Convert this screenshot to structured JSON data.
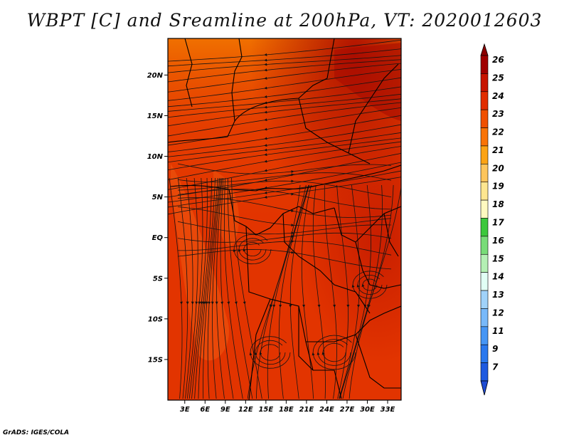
{
  "title": "WBPT [C] and Sreamline at 200hPa, VT: 2020012603",
  "credit": "GrADS: IGES/COLA",
  "map": {
    "lat_labels": [
      {
        "label": "20N",
        "lat": 20
      },
      {
        "label": "15N",
        "lat": 15
      },
      {
        "label": "10N",
        "lat": 10
      },
      {
        "label": "5N",
        "lat": 5
      },
      {
        "label": "EQ",
        "lat": 0
      },
      {
        "label": "5S",
        "lat": -5
      },
      {
        "label": "10S",
        "lat": -10
      },
      {
        "label": "15S",
        "lat": -15
      }
    ],
    "lon_labels": [
      {
        "label": "3E",
        "lon": 3
      },
      {
        "label": "6E",
        "lon": 6
      },
      {
        "label": "9E",
        "lon": 9
      },
      {
        "label": "12E",
        "lon": 12
      },
      {
        "label": "15E",
        "lon": 15
      },
      {
        "label": "18E",
        "lon": 18
      },
      {
        "label": "21E",
        "lon": 21
      },
      {
        "label": "24E",
        "lon": 24
      },
      {
        "label": "27E",
        "lon": 27
      },
      {
        "label": "30E",
        "lon": 30
      },
      {
        "label": "33E",
        "lon": 33
      }
    ],
    "lon_range": [
      0.5,
      35
    ],
    "lat_range": [
      -20,
      24.5
    ]
  },
  "colorbar": {
    "labels": [
      "26",
      "25",
      "24",
      "23",
      "22",
      "21",
      "20",
      "19",
      "18",
      "17",
      "16",
      "15",
      "14",
      "13",
      "12",
      "11",
      "9",
      "7"
    ],
    "colors": [
      "#a00000",
      "#c81400",
      "#e12d00",
      "#f05000",
      "#f97306",
      "#fca314",
      "#fdc55c",
      "#fde690",
      "#fff9c0",
      "#3cc83c",
      "#78dc78",
      "#b4f0b4",
      "#e1fff5",
      "#a0d2fa",
      "#78b9fa",
      "#4696f5",
      "#2a78ee",
      "#1e5ae0"
    ],
    "top_arrow_color": "#8c0000",
    "bottom_arrow_color": "#1e4bd2"
  }
}
